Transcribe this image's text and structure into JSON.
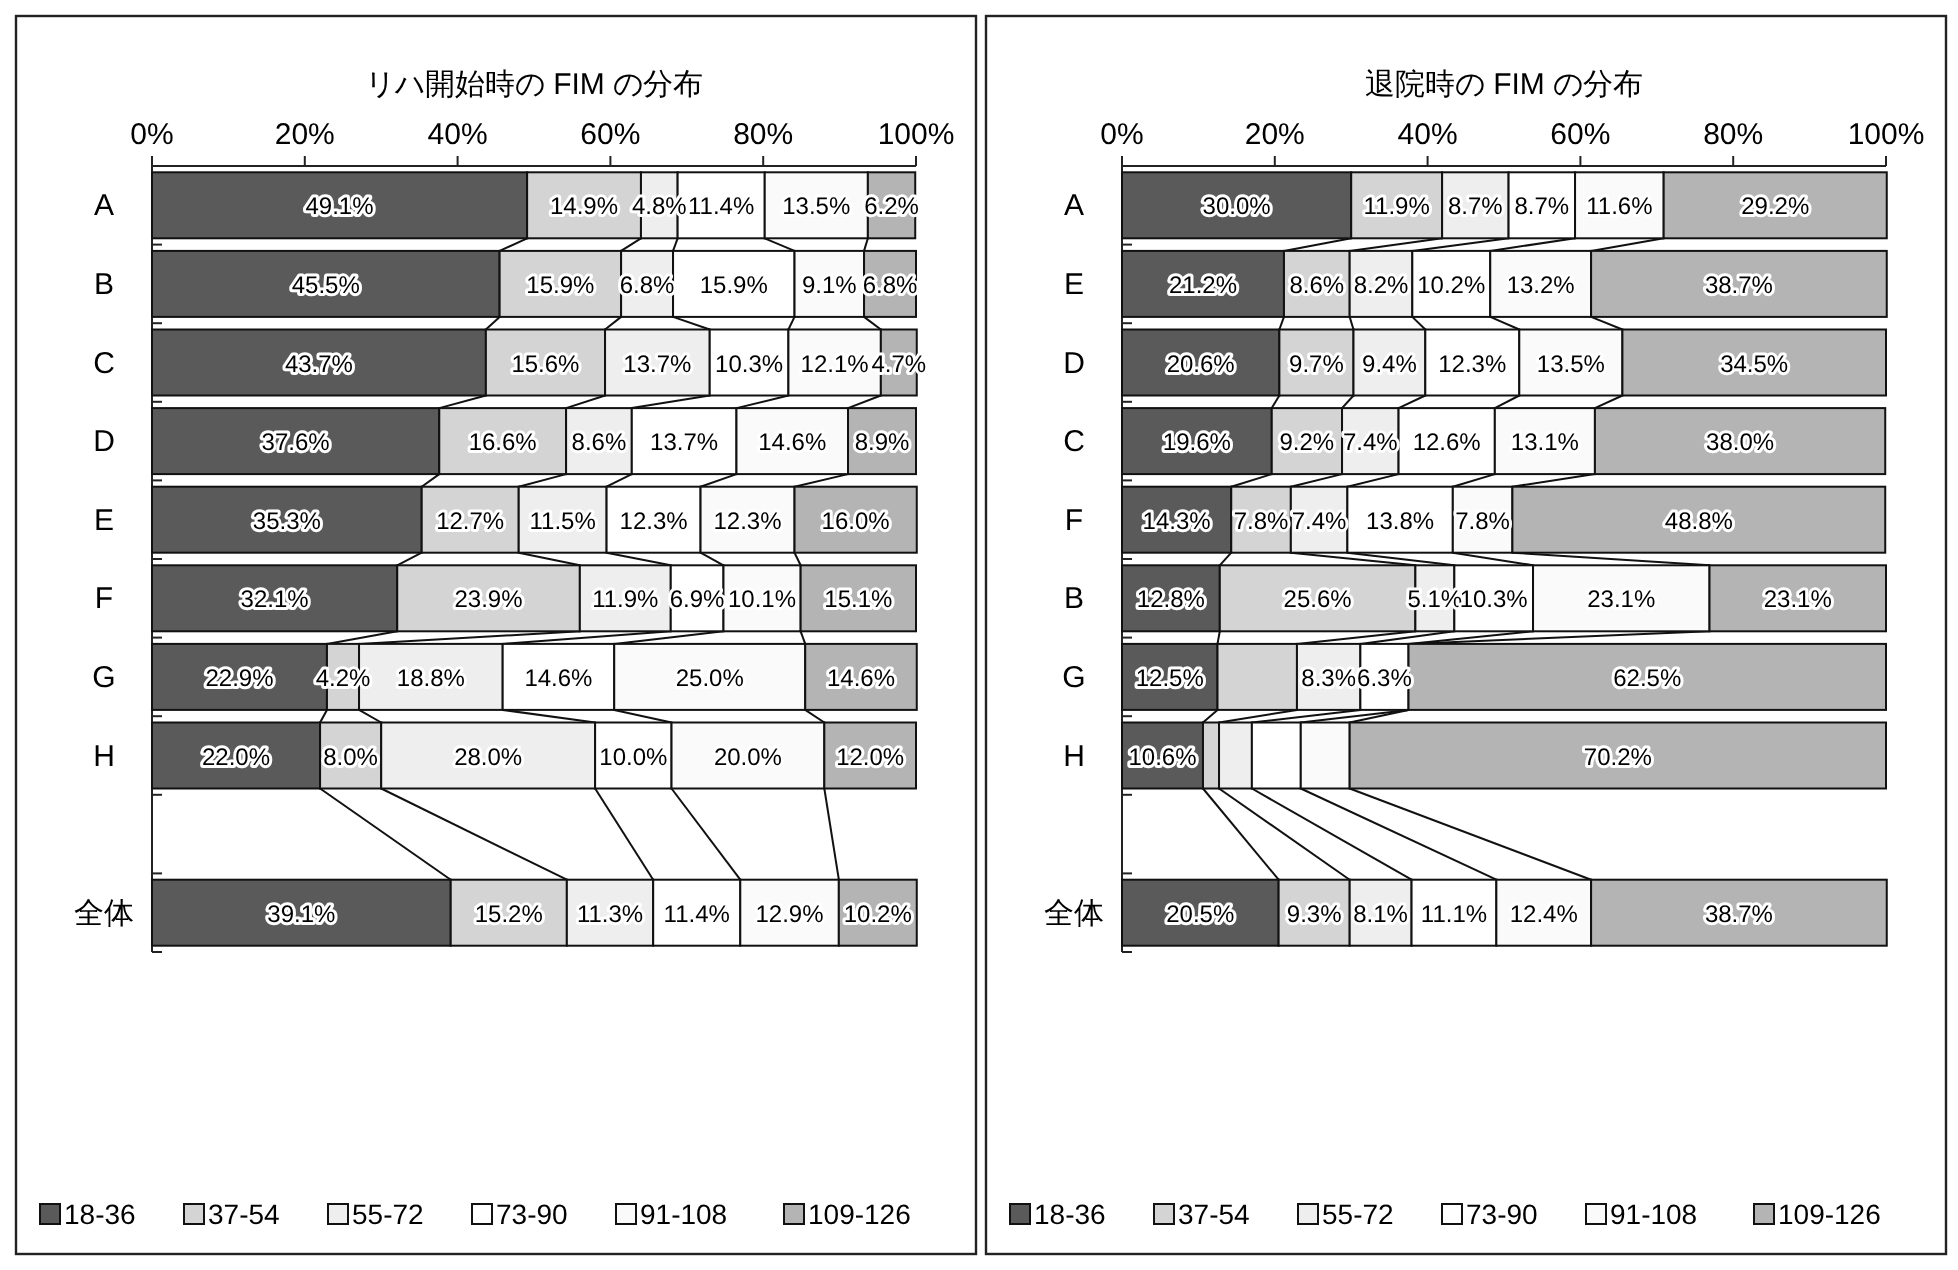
{
  "chart_data": [
    {
      "type": "bar",
      "orientation": "horizontal",
      "stacked": true,
      "title": "リハ開始時の FIM の分布",
      "legend": "bottom",
      "xlim": [
        0,
        100
      ],
      "xticks": [
        {
          "value": 0,
          "label": "0%"
        },
        {
          "value": 20,
          "label": "20%"
        },
        {
          "value": 40,
          "label": "40%"
        },
        {
          "value": 60,
          "label": "60%"
        },
        {
          "value": 80,
          "label": "80%"
        },
        {
          "value": 100,
          "label": "100%"
        }
      ],
      "categories": [
        "A",
        "B",
        "C",
        "D",
        "E",
        "F",
        "G",
        "H",
        null,
        "全体"
      ],
      "series": [
        {
          "name": "18-36",
          "color": "#5a5a5a",
          "values": [
            49.1,
            45.5,
            43.7,
            37.6,
            35.3,
            32.1,
            22.9,
            22.0,
            null,
            39.1
          ],
          "value_labels": [
            "49.1%",
            "45.5%",
            "43.7%",
            "37.6%",
            "35.3%",
            "32.1%",
            "22.9%",
            "22.0%",
            null,
            "39.1%"
          ]
        },
        {
          "name": "37-54",
          "color": "#d4d4d4",
          "values": [
            14.9,
            15.9,
            15.6,
            16.6,
            12.7,
            23.9,
            4.2,
            8.0,
            null,
            15.2
          ],
          "value_labels": [
            "14.9%",
            "15.9%",
            "15.6%",
            "16.6%",
            "12.7%",
            "23.9%",
            "4.2%",
            "8.0%",
            null,
            "15.2%"
          ]
        },
        {
          "name": "55-72",
          "color": "#eeeeee",
          "values": [
            4.8,
            6.8,
            13.7,
            8.6,
            11.5,
            11.9,
            18.8,
            28.0,
            null,
            11.3
          ],
          "value_labels": [
            "4.8%",
            "6.8%",
            "13.7%",
            "8.6%",
            "11.5%",
            "11.9%",
            "18.8%",
            "28.0%",
            null,
            "11.3%"
          ]
        },
        {
          "name": "73-90",
          "color": "#ffffff",
          "values": [
            11.4,
            15.9,
            10.3,
            13.7,
            12.3,
            6.9,
            14.6,
            10.0,
            null,
            11.4
          ],
          "value_labels": [
            "11.4%",
            "15.9%",
            "10.3%",
            "13.7%",
            "12.3%",
            "6.9%",
            "14.6%",
            "10.0%",
            null,
            "11.4%"
          ]
        },
        {
          "name": "91-108",
          "color": "#fafafa",
          "values": [
            13.5,
            9.1,
            12.1,
            14.6,
            12.3,
            10.1,
            25.0,
            20.0,
            null,
            12.9
          ],
          "value_labels": [
            "13.5%",
            "9.1%",
            "12.1%",
            "14.6%",
            "12.3%",
            "10.1%",
            "25.0%",
            "20.0%",
            null,
            "12.9%"
          ]
        },
        {
          "name": "109-126",
          "color": "#b4b4b4",
          "values": [
            6.2,
            6.8,
            4.7,
            8.9,
            16.0,
            15.1,
            14.6,
            12.0,
            null,
            10.2
          ],
          "value_labels": [
            "6.2%",
            "6.8%",
            "4.7%",
            "8.9%",
            "16.0%",
            "15.1%",
            "14.6%",
            "12.0%",
            null,
            "10.2%"
          ]
        }
      ]
    },
    {
      "type": "bar",
      "orientation": "horizontal",
      "stacked": true,
      "title": "退院時の FIM の分布",
      "legend": "bottom",
      "xlim": [
        0,
        100
      ],
      "xticks": [
        {
          "value": 0,
          "label": "0%"
        },
        {
          "value": 20,
          "label": "20%"
        },
        {
          "value": 40,
          "label": "40%"
        },
        {
          "value": 60,
          "label": "60%"
        },
        {
          "value": 80,
          "label": "80%"
        },
        {
          "value": 100,
          "label": "100%"
        }
      ],
      "categories": [
        "A",
        "E",
        "D",
        "C",
        "F",
        "B",
        "G",
        "H",
        null,
        "全体"
      ],
      "series": [
        {
          "name": "18-36",
          "color": "#5a5a5a",
          "values": [
            30.0,
            21.2,
            20.6,
            19.6,
            14.3,
            12.8,
            12.5,
            10.6,
            null,
            20.5
          ],
          "value_labels": [
            "30.0%",
            "21.2%",
            "20.6%",
            "19.6%",
            "14.3%",
            "12.8%",
            "12.5%",
            "10.6%",
            null,
            "20.5%"
          ]
        },
        {
          "name": "37-54",
          "color": "#d4d4d4",
          "values": [
            11.9,
            8.6,
            9.7,
            9.2,
            7.8,
            25.6,
            10.4,
            2.1,
            null,
            9.3
          ],
          "value_labels": [
            "11.9%",
            "8.6%",
            "9.7%",
            "9.2%",
            "7.8%",
            "25.6%",
            null,
            null,
            null,
            "9.3%"
          ]
        },
        {
          "name": "55-72",
          "color": "#eeeeee",
          "values": [
            8.7,
            8.2,
            9.4,
            7.4,
            7.4,
            5.1,
            8.3,
            4.3,
            null,
            8.1
          ],
          "value_labels": [
            "8.7%",
            "8.2%",
            "9.4%",
            "7.4%",
            "7.4%",
            "5.1%",
            "8.3%",
            null,
            null,
            "8.1%"
          ]
        },
        {
          "name": "73-90",
          "color": "#ffffff",
          "values": [
            8.7,
            10.2,
            12.3,
            12.6,
            13.8,
            10.3,
            6.3,
            6.4,
            null,
            11.1
          ],
          "value_labels": [
            "8.7%",
            "10.2%",
            "12.3%",
            "12.6%",
            "13.8%",
            "10.3%",
            "6.3%",
            null,
            null,
            "11.1%"
          ]
        },
        {
          "name": "91-108",
          "color": "#fafafa",
          "values": [
            11.6,
            13.2,
            13.5,
            13.1,
            7.8,
            23.1,
            0,
            6.4,
            null,
            12.4
          ],
          "value_labels": [
            "11.6%",
            "13.2%",
            "13.5%",
            "13.1%",
            "7.8%",
            "23.1%",
            null,
            null,
            null,
            "12.4%"
          ]
        },
        {
          "name": "109-126",
          "color": "#b4b4b4",
          "values": [
            29.2,
            38.7,
            34.5,
            38.0,
            48.8,
            23.1,
            62.5,
            70.2,
            null,
            38.7
          ],
          "value_labels": [
            "29.2%",
            "38.7%",
            "34.5%",
            "38.0%",
            "48.8%",
            "23.1%",
            "62.5%",
            "70.2%",
            null,
            "38.7%"
          ]
        }
      ]
    }
  ]
}
